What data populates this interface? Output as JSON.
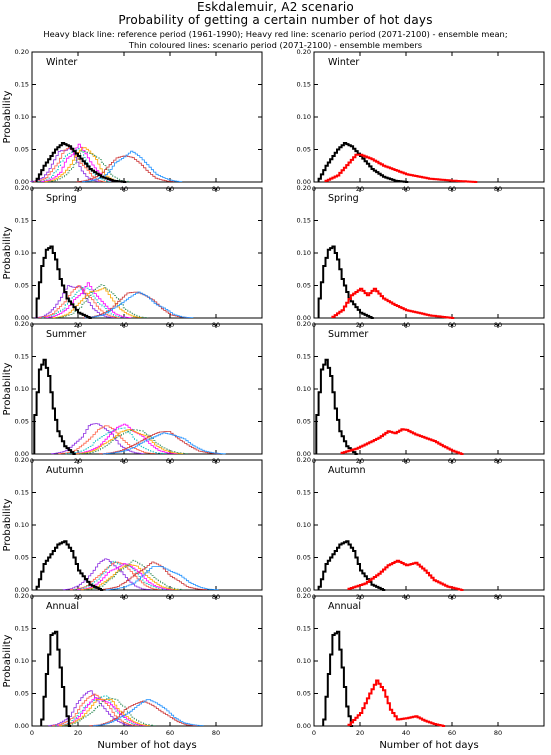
{
  "header": {
    "title": "Eskdalemuir, A2 scenario",
    "subtitle": "Probability of getting a certain number of hot days",
    "legend_line1": "Heavy black line: reference period (1961-1990); Heavy red line: scenario period (2071-2100) - ensemble mean;",
    "legend_line2": "Thin coloured lines: scenario period (2071-2100) - ensemble members"
  },
  "chart_data": [
    {
      "type": "line",
      "panel": "Winter",
      "column": "ensemble members",
      "ylabel": "Probability",
      "xlabel": "",
      "xlim": [
        0,
        100
      ],
      "ylim": [
        0,
        0.2
      ],
      "xticks": [
        0,
        20,
        40,
        60,
        80
      ],
      "yticks": [
        0.0,
        0.05,
        0.1,
        0.15,
        0.2
      ],
      "reference": {
        "x": [
          2,
          5,
          10,
          13,
          16,
          20,
          25,
          30,
          35,
          40
        ],
        "y": [
          0.005,
          0.025,
          0.05,
          0.06,
          0.055,
          0.04,
          0.02,
          0.008,
          0.002,
          0.0
        ]
      },
      "members_mode_x": [
        14,
        16,
        18,
        20,
        22,
        24,
        40,
        43
      ]
    },
    {
      "type": "line",
      "panel": "Winter",
      "column": "ensemble mean",
      "ylabel": "",
      "xlabel": "",
      "xlim": [
        0,
        100
      ],
      "ylim": [
        0,
        0.2
      ],
      "xticks": [
        0,
        20,
        40,
        60,
        80
      ],
      "yticks": [
        0.0,
        0.05,
        0.1,
        0.15,
        0.2
      ],
      "reference": {
        "x": [
          2,
          5,
          10,
          13,
          16,
          20,
          25,
          30,
          35,
          40
        ],
        "y": [
          0.005,
          0.025,
          0.05,
          0.06,
          0.055,
          0.04,
          0.02,
          0.008,
          0.002,
          0.0
        ]
      },
      "scenario_mean": {
        "x": [
          5,
          10,
          15,
          18,
          20,
          25,
          30,
          40,
          50,
          60,
          70
        ],
        "y": [
          0.002,
          0.01,
          0.03,
          0.042,
          0.042,
          0.035,
          0.025,
          0.012,
          0.005,
          0.002,
          0.0
        ]
      }
    },
    {
      "type": "line",
      "panel": "Spring",
      "column": "ensemble members",
      "ylabel": "Probability",
      "xlabel": "",
      "xlim": [
        0,
        100
      ],
      "ylim": [
        0,
        0.2
      ],
      "xticks": [
        0,
        20,
        40,
        60,
        80
      ],
      "yticks": [
        0.0,
        0.05,
        0.1,
        0.15,
        0.2
      ],
      "reference": {
        "x": [
          2,
          4,
          6,
          8,
          10,
          12,
          15,
          20,
          25
        ],
        "y": [
          0.03,
          0.08,
          0.105,
          0.11,
          0.09,
          0.06,
          0.03,
          0.008,
          0.0
        ]
      },
      "members_mode_x": [
        18,
        20,
        22,
        24,
        28,
        30,
        45,
        46
      ]
    },
    {
      "type": "line",
      "panel": "Spring",
      "column": "ensemble mean",
      "ylabel": "",
      "xlabel": "",
      "xlim": [
        0,
        100
      ],
      "ylim": [
        0,
        0.2
      ],
      "xticks": [
        0,
        20,
        40,
        60,
        80
      ],
      "yticks": [
        0.0,
        0.05,
        0.1,
        0.15,
        0.2
      ],
      "reference": {
        "x": [
          2,
          4,
          6,
          8,
          10,
          12,
          15,
          20,
          25
        ],
        "y": [
          0.03,
          0.08,
          0.105,
          0.11,
          0.09,
          0.06,
          0.03,
          0.008,
          0.0
        ]
      },
      "scenario_mean": {
        "x": [
          8,
          12,
          16,
          20,
          23,
          26,
          30,
          35,
          40,
          45,
          50,
          55,
          60
        ],
        "y": [
          0.002,
          0.012,
          0.035,
          0.045,
          0.035,
          0.045,
          0.03,
          0.02,
          0.012,
          0.008,
          0.004,
          0.002,
          0.0
        ]
      }
    },
    {
      "type": "line",
      "panel": "Summer",
      "column": "ensemble members",
      "ylabel": "Probability",
      "xlabel": "",
      "xlim": [
        0,
        100
      ],
      "ylim": [
        0,
        0.2
      ],
      "xticks": [
        0,
        20,
        40,
        60,
        80
      ],
      "yticks": [
        0.0,
        0.05,
        0.1,
        0.15,
        0.2
      ],
      "reference": {
        "x": [
          1,
          3,
          5,
          7,
          9,
          11,
          14,
          18
        ],
        "y": [
          0.06,
          0.13,
          0.145,
          0.12,
          0.07,
          0.035,
          0.012,
          0.0
        ]
      },
      "members_mode_x": [
        28,
        32,
        36,
        40,
        42,
        44,
        55,
        57
      ]
    },
    {
      "type": "line",
      "panel": "Summer",
      "column": "ensemble mean",
      "ylabel": "",
      "xlabel": "",
      "xlim": [
        0,
        100
      ],
      "ylim": [
        0,
        0.2
      ],
      "xticks": [
        0,
        20,
        40,
        60,
        80
      ],
      "yticks": [
        0.0,
        0.05,
        0.1,
        0.15,
        0.2
      ],
      "reference": {
        "x": [
          1,
          3,
          5,
          7,
          9,
          11,
          14,
          18
        ],
        "y": [
          0.06,
          0.13,
          0.145,
          0.12,
          0.07,
          0.035,
          0.012,
          0.0
        ]
      },
      "scenario_mean": {
        "x": [
          12,
          18,
          24,
          28,
          32,
          35,
          38,
          40,
          44,
          48,
          52,
          56,
          60,
          64
        ],
        "y": [
          0.002,
          0.008,
          0.018,
          0.025,
          0.035,
          0.032,
          0.038,
          0.037,
          0.03,
          0.025,
          0.02,
          0.012,
          0.005,
          0.0
        ]
      }
    },
    {
      "type": "line",
      "panel": "Autumn",
      "column": "ensemble members",
      "ylabel": "Probability",
      "xlabel": "",
      "xlim": [
        0,
        100
      ],
      "ylim": [
        0,
        0.2
      ],
      "xticks": [
        0,
        20,
        40,
        60,
        80
      ],
      "yticks": [
        0.0,
        0.05,
        0.1,
        0.15,
        0.2
      ],
      "reference": {
        "x": [
          2,
          5,
          8,
          11,
          14,
          17,
          20,
          25,
          30
        ],
        "y": [
          0.005,
          0.04,
          0.055,
          0.07,
          0.075,
          0.06,
          0.03,
          0.008,
          0.0
        ]
      },
      "members_mode_x": [
        32,
        36,
        38,
        40,
        42,
        44,
        52,
        56
      ]
    },
    {
      "type": "line",
      "panel": "Autumn",
      "column": "ensemble mean",
      "ylabel": "",
      "xlabel": "",
      "xlim": [
        0,
        100
      ],
      "ylim": [
        0,
        0.2
      ],
      "xticks": [
        0,
        20,
        40,
        60,
        80
      ],
      "yticks": [
        0.0,
        0.05,
        0.1,
        0.15,
        0.2
      ],
      "reference": {
        "x": [
          2,
          5,
          8,
          11,
          14,
          17,
          20,
          25,
          30
        ],
        "y": [
          0.005,
          0.04,
          0.055,
          0.07,
          0.075,
          0.06,
          0.03,
          0.008,
          0.0
        ]
      },
      "scenario_mean": {
        "x": [
          15,
          22,
          28,
          32,
          36,
          40,
          44,
          48,
          52,
          58,
          64
        ],
        "y": [
          0.002,
          0.01,
          0.025,
          0.038,
          0.045,
          0.038,
          0.042,
          0.03,
          0.015,
          0.005,
          0.0
        ]
      }
    },
    {
      "type": "line",
      "panel": "Annual",
      "column": "ensemble members",
      "ylabel": "Probability",
      "xlabel": "Number of hot days",
      "xlim": [
        0,
        100
      ],
      "ylim": [
        0,
        0.2
      ],
      "xticks": [
        0,
        20,
        40,
        60,
        80
      ],
      "yticks": [
        0.0,
        0.05,
        0.1,
        0.15,
        0.2
      ],
      "reference": {
        "x": [
          4,
          6,
          8,
          10,
          12,
          14,
          16
        ],
        "y": [
          0.01,
          0.08,
          0.14,
          0.145,
          0.09,
          0.03,
          0.0
        ]
      },
      "members_mode_x": [
        25,
        27,
        29,
        30,
        31,
        33,
        48,
        50
      ]
    },
    {
      "type": "line",
      "panel": "Annual",
      "column": "ensemble mean",
      "ylabel": "",
      "xlabel": "Number of hot days",
      "xlim": [
        0,
        100
      ],
      "ylim": [
        0,
        0.2
      ],
      "xticks": [
        0,
        20,
        40,
        60,
        80
      ],
      "yticks": [
        0.0,
        0.05,
        0.1,
        0.15,
        0.2
      ],
      "reference": {
        "x": [
          4,
          6,
          8,
          10,
          12,
          14,
          16
        ],
        "y": [
          0.01,
          0.08,
          0.14,
          0.145,
          0.09,
          0.03,
          0.0
        ]
      },
      "scenario_mean": {
        "x": [
          15,
          20,
          24,
          27,
          30,
          33,
          36,
          40,
          44,
          48,
          52,
          56
        ],
        "y": [
          0.002,
          0.02,
          0.05,
          0.07,
          0.055,
          0.025,
          0.01,
          0.012,
          0.015,
          0.008,
          0.003,
          0.0
        ]
      }
    }
  ],
  "colors": {
    "reference": "#000000",
    "mean": "#ff0000",
    "members": [
      "#8a2be2",
      "#ff6347",
      "#00c0c0",
      "#ff00ff",
      "#ffa500",
      "#2e8b57",
      "#cc3333",
      "#1e90ff"
    ]
  }
}
